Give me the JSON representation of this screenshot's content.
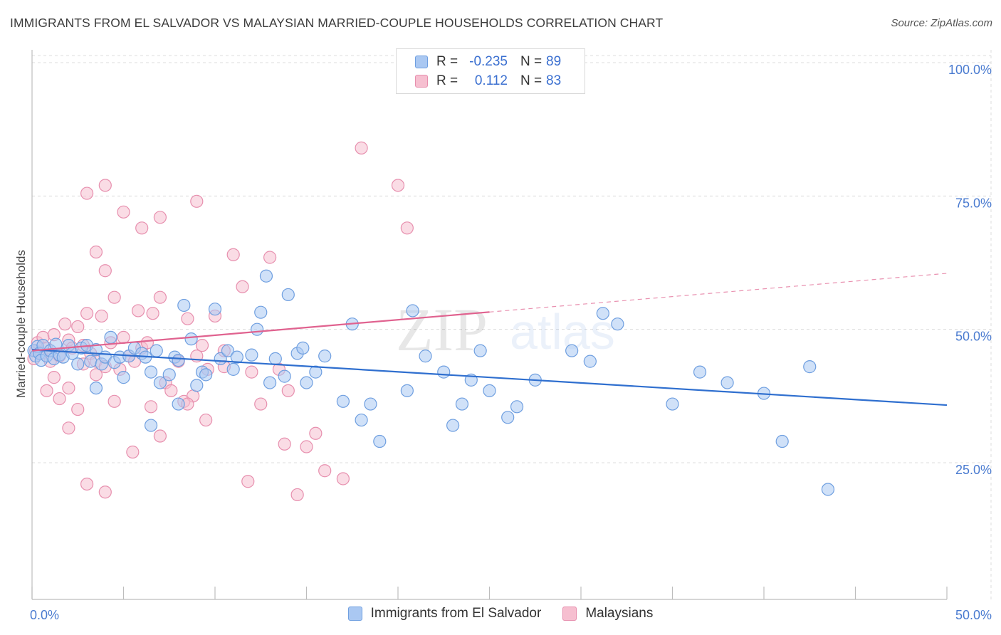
{
  "header": {
    "title": "IMMIGRANTS FROM EL SALVADOR VS MALAYSIAN MARRIED-COUPLE HOUSEHOLDS CORRELATION CHART",
    "source": "Source: ZipAtlas.com"
  },
  "legend": {
    "rows": [
      {
        "r_label": "R =",
        "r_value": "-0.235",
        "n_label": "N =",
        "n_value": "89"
      },
      {
        "r_label": "R =",
        "r_value": "0.112",
        "n_label": "N =",
        "n_value": "83"
      }
    ]
  },
  "watermark": {
    "zip": "ZIP",
    "atlas": "atlas"
  },
  "colors": {
    "blue_fill": "#aac8f2",
    "blue_stroke": "#6f9fe0",
    "blue_line": "#2f6fcf",
    "pink_fill": "#f6bfd0",
    "pink_stroke": "#e78fae",
    "pink_line": "#e0628f",
    "tick_color": "#4a7bd0",
    "grid": "#dcdcdc"
  },
  "chart_data": {
    "type": "scatter",
    "title": "IMMIGRANTS FROM EL SALVADOR VS MALAYSIAN MARRIED-COUPLE HOUSEHOLDS CORRELATION CHART",
    "xlabel": "",
    "ylabel": "Married-couple Households",
    "xlim": [
      0,
      50
    ],
    "ylim": [
      0,
      105
    ],
    "x_ticks": [
      "0.0%",
      "50.0%"
    ],
    "y_ticks": [
      {
        "value": 25,
        "label": "25.0%"
      },
      {
        "value": 50,
        "label": "50.0%"
      },
      {
        "value": 75,
        "label": "75.0%"
      },
      {
        "value": 100,
        "label": "100.0%"
      }
    ],
    "grid": true,
    "legend_position": "top-center",
    "series": [
      {
        "name": "Immigrants from El Salvador",
        "color": "#aac8f2",
        "trend": {
          "x": [
            0,
            50
          ],
          "y": [
            46.2,
            35.8
          ],
          "dashed_from": null
        },
        "points": [
          [
            0.1,
            46.0
          ],
          [
            0.2,
            45.0
          ],
          [
            0.3,
            46.8
          ],
          [
            0.4,
            45.5
          ],
          [
            0.5,
            44.2
          ],
          [
            0.6,
            47.0
          ],
          [
            0.8,
            45.0
          ],
          [
            1.0,
            46.0
          ],
          [
            1.2,
            44.5
          ],
          [
            1.3,
            47.2
          ],
          [
            1.5,
            45.2
          ],
          [
            1.7,
            44.8
          ],
          [
            2.0,
            47.0
          ],
          [
            2.2,
            45.5
          ],
          [
            2.5,
            43.5
          ],
          [
            2.7,
            46.5
          ],
          [
            3.0,
            47.0
          ],
          [
            3.2,
            44.0
          ],
          [
            3.5,
            46.2
          ],
          [
            3.8,
            43.5
          ],
          [
            4.0,
            44.8
          ],
          [
            4.3,
            48.5
          ],
          [
            4.5,
            43.8
          ],
          [
            4.8,
            44.8
          ],
          [
            5.0,
            41.0
          ],
          [
            5.3,
            45.0
          ],
          [
            5.6,
            46.5
          ],
          [
            6.0,
            45.5
          ],
          [
            6.2,
            44.8
          ],
          [
            6.5,
            42.0
          ],
          [
            6.8,
            46.0
          ],
          [
            7.0,
            40.0
          ],
          [
            7.5,
            41.5
          ],
          [
            7.8,
            44.8
          ],
          [
            8.0,
            44.2
          ],
          [
            8.3,
            54.5
          ],
          [
            8.7,
            48.2
          ],
          [
            9.0,
            39.5
          ],
          [
            9.3,
            42.0
          ],
          [
            9.5,
            41.5
          ],
          [
            10.0,
            53.8
          ],
          [
            10.3,
            44.5
          ],
          [
            10.7,
            46.0
          ],
          [
            11.0,
            42.5
          ],
          [
            11.2,
            44.8
          ],
          [
            12.0,
            45.2
          ],
          [
            12.3,
            50.0
          ],
          [
            12.5,
            53.2
          ],
          [
            13.0,
            40.0
          ],
          [
            13.3,
            44.5
          ],
          [
            13.8,
            41.2
          ],
          [
            14.0,
            56.5
          ],
          [
            14.5,
            45.5
          ],
          [
            14.8,
            46.5
          ],
          [
            15.0,
            40.0
          ],
          [
            15.5,
            42.0
          ],
          [
            16.0,
            45.0
          ],
          [
            17.0,
            36.5
          ],
          [
            17.5,
            51.0
          ],
          [
            18.0,
            33.0
          ],
          [
            18.5,
            36.0
          ],
          [
            19.0,
            29.0
          ],
          [
            20.5,
            38.5
          ],
          [
            20.8,
            53.5
          ],
          [
            21.5,
            45.0
          ],
          [
            22.5,
            42.0
          ],
          [
            23.0,
            32.0
          ],
          [
            24.0,
            40.5
          ],
          [
            24.5,
            46.0
          ],
          [
            25.0,
            38.5
          ],
          [
            26.0,
            33.5
          ],
          [
            26.5,
            35.5
          ],
          [
            27.5,
            40.5
          ],
          [
            29.5,
            46.0
          ],
          [
            30.5,
            44.0
          ],
          [
            31.2,
            53.0
          ],
          [
            32.0,
            51.0
          ],
          [
            35.0,
            36.0
          ],
          [
            36.5,
            42.0
          ],
          [
            38.0,
            40.0
          ],
          [
            40.0,
            38.0
          ],
          [
            41.0,
            29.0
          ],
          [
            42.5,
            43.0
          ],
          [
            43.5,
            20.0
          ],
          [
            6.5,
            32.0
          ],
          [
            8.0,
            36.0
          ],
          [
            12.8,
            60.0
          ],
          [
            23.5,
            36.0
          ],
          [
            3.5,
            39.0
          ]
        ]
      },
      {
        "name": "Malaysians",
        "color": "#f6bfd0",
        "trend": {
          "x": [
            0,
            50
          ],
          "y": [
            46.0,
            60.5
          ],
          "solid_until": 25
        },
        "points": [
          [
            0.1,
            44.5
          ],
          [
            0.2,
            46.0
          ],
          [
            0.3,
            47.5
          ],
          [
            0.5,
            45.5
          ],
          [
            0.6,
            48.5
          ],
          [
            0.8,
            46.5
          ],
          [
            1.0,
            44.0
          ],
          [
            1.2,
            49.0
          ],
          [
            1.5,
            45.0
          ],
          [
            1.8,
            51.0
          ],
          [
            2.0,
            48.0
          ],
          [
            2.2,
            46.5
          ],
          [
            2.5,
            50.5
          ],
          [
            2.8,
            47.0
          ],
          [
            3.0,
            53.0
          ],
          [
            3.2,
            45.5
          ],
          [
            3.5,
            44.0
          ],
          [
            3.8,
            52.5
          ],
          [
            4.0,
            43.0
          ],
          [
            4.3,
            47.5
          ],
          [
            4.5,
            56.0
          ],
          [
            4.8,
            42.5
          ],
          [
            5.0,
            48.5
          ],
          [
            5.3,
            45.0
          ],
          [
            5.6,
            44.0
          ],
          [
            5.8,
            53.5
          ],
          [
            6.0,
            46.5
          ],
          [
            6.3,
            47.5
          ],
          [
            6.6,
            53.0
          ],
          [
            7.0,
            56.0
          ],
          [
            7.3,
            40.0
          ],
          [
            7.6,
            38.5
          ],
          [
            8.0,
            44.0
          ],
          [
            8.3,
            36.5
          ],
          [
            8.5,
            52.0
          ],
          [
            8.8,
            37.5
          ],
          [
            9.0,
            45.0
          ],
          [
            9.3,
            47.0
          ],
          [
            9.6,
            42.5
          ],
          [
            10.0,
            52.5
          ],
          [
            10.5,
            46.0
          ],
          [
            11.0,
            64.0
          ],
          [
            11.5,
            58.0
          ],
          [
            12.0,
            42.0
          ],
          [
            13.0,
            63.5
          ],
          [
            13.5,
            42.5
          ],
          [
            14.0,
            38.5
          ],
          [
            15.0,
            28.0
          ],
          [
            15.5,
            30.5
          ],
          [
            16.0,
            23.5
          ],
          [
            17.0,
            22.0
          ],
          [
            18.0,
            84.0
          ],
          [
            20.0,
            77.0
          ],
          [
            20.5,
            69.0
          ],
          [
            3.0,
            75.5
          ],
          [
            4.0,
            77.0
          ],
          [
            5.0,
            72.0
          ],
          [
            6.0,
            69.0
          ],
          [
            7.0,
            71.0
          ],
          [
            9.0,
            74.0
          ],
          [
            3.5,
            64.5
          ],
          [
            4.0,
            61.0
          ],
          [
            1.5,
            37.0
          ],
          [
            2.0,
            31.5
          ],
          [
            2.5,
            35.0
          ],
          [
            3.0,
            21.0
          ],
          [
            4.0,
            19.5
          ],
          [
            5.5,
            27.0
          ],
          [
            7.0,
            30.0
          ],
          [
            8.5,
            36.0
          ],
          [
            9.5,
            33.0
          ],
          [
            10.5,
            43.0
          ],
          [
            12.5,
            36.0
          ],
          [
            13.8,
            28.5
          ],
          [
            14.5,
            19.0
          ],
          [
            2.0,
            39.0
          ],
          [
            3.5,
            41.5
          ],
          [
            1.2,
            41.0
          ],
          [
            0.8,
            38.5
          ],
          [
            2.8,
            43.5
          ],
          [
            4.5,
            36.5
          ],
          [
            6.5,
            35.5
          ],
          [
            11.8,
            21.5
          ]
        ]
      }
    ]
  }
}
